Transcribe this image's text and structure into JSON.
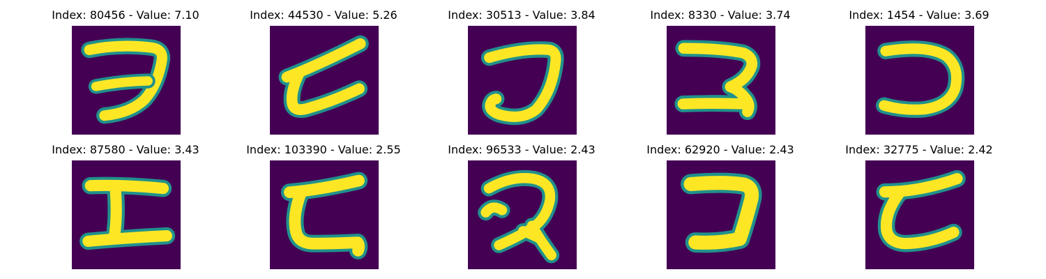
{
  "colors": {
    "background": "#440154",
    "stroke_core": "#fde725",
    "stroke_mid": "#5ec962",
    "stroke_edge": "#21918c"
  },
  "panels": [
    {
      "title": "Index: 80456 - Value: 7.10",
      "glyph": "seven-like"
    },
    {
      "title": "Index: 44530 - Value: 5.26",
      "glyph": "zeta-like"
    },
    {
      "title": "Index: 30513 - Value: 3.84",
      "glyph": "j-like"
    },
    {
      "title": "Index: 8330 - Value: 3.74",
      "glyph": "z-like"
    },
    {
      "title": "Index: 1454 - Value: 3.69",
      "glyph": "reverse-c-like"
    },
    {
      "title": "Index: 87580 - Value: 3.43",
      "glyph": "i-beam-like"
    },
    {
      "title": "Index: 103390 - Value: 2.55",
      "glyph": "c-tail-like"
    },
    {
      "title": "Index: 96533 - Value: 2.43",
      "glyph": "two-loop-like"
    },
    {
      "title": "Index: 62920 - Value: 2.43",
      "glyph": "bold-z-like"
    },
    {
      "title": "Index: 32775 - Value: 2.42",
      "glyph": "c-ribbon-like"
    }
  ]
}
